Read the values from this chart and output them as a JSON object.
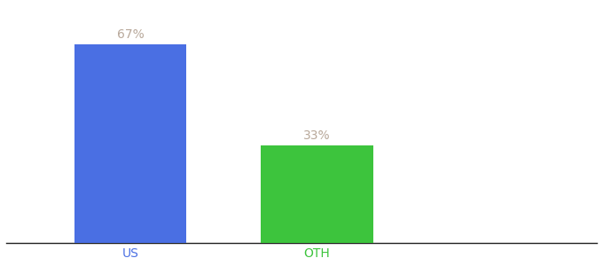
{
  "categories": [
    "US",
    "OTH"
  ],
  "values": [
    67,
    33
  ],
  "bar_colors": [
    "#4A6FE3",
    "#3DC43D"
  ],
  "label_texts": [
    "67%",
    "33%"
  ],
  "label_color": "#B8A89A",
  "background_color": "#ffffff",
  "ylim": [
    0,
    80
  ],
  "bar_width": 0.18,
  "figsize": [
    6.8,
    3.0
  ],
  "dpi": 100,
  "x_positions": [
    0.25,
    0.55
  ]
}
